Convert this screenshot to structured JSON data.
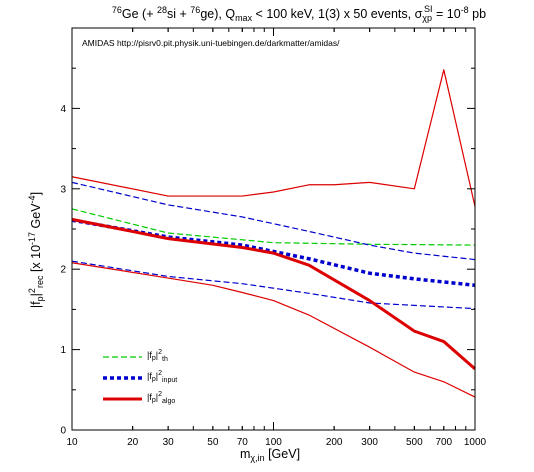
{
  "chart_data": {
    "type": "line",
    "title_parts": {
      "iso1": "76",
      "t1": "Ge (+ ",
      "iso2": "28",
      "t2": "si + ",
      "iso3": "76",
      "t3": "ge), Q",
      "qsub": "max",
      "t4": " < 100 keV, 1(3) x 50 events, σ",
      "ssub": "χp",
      "ssup": "SI",
      "t5": " = 10",
      "exp": "-8",
      "t6": " pb"
    },
    "annotation": "AMIDAS   http://pisrv0.pit.physik.uni-tuebingen.de/darkmatter/amidas/",
    "xlabel": {
      "main": "m",
      "sub": "χ,in",
      "rest": " [GeV]"
    },
    "ylabel": {
      "p1": "|f",
      "sub1": "p",
      "p2": "|",
      "sup1": "2",
      "sub2": "rec",
      "p3": "  [x 10",
      "sup2": "-17",
      "p4": " GeV",
      "sup3": "-4",
      "p5": "]"
    },
    "xscale": "log",
    "xlim": [
      10,
      1000
    ],
    "ylim": [
      0,
      5
    ],
    "xticks": [
      10,
      20,
      30,
      50,
      70,
      100,
      200,
      300,
      500,
      700,
      1000
    ],
    "xtick_labels": [
      "10",
      "20",
      "30",
      "50",
      "70",
      "100",
      "200",
      "300",
      "500",
      "700",
      "1000"
    ],
    "yticks": [
      0,
      1,
      2,
      3,
      4
    ],
    "ytick_labels": [
      "0",
      "1",
      "2",
      "3",
      "4"
    ],
    "grid": false,
    "legend_position": "bottom-left",
    "legend": [
      {
        "p1": "|f",
        "sub1": "p",
        "p2": "|",
        "sup": "2",
        "sub2": "th",
        "color": "#00cc00",
        "style": "dashed",
        "width": 1.2
      },
      {
        "p1": "|f",
        "sub1": "p",
        "p2": "|",
        "sup": "2",
        "sub2": "input",
        "color": "#0000cc",
        "style": "dotted",
        "width": 3.5
      },
      {
        "p1": "|f",
        "sub1": "p",
        "p2": "|",
        "sup": "2",
        "sub2": "algo",
        "color": "#dd0000",
        "style": "solid",
        "width": 3
      }
    ],
    "series": [
      {
        "role": "th",
        "color": "#00cc00",
        "style": "dashed",
        "width": 1.2,
        "x": [
          10,
          30,
          100,
          300,
          1000
        ],
        "y": [
          2.75,
          2.45,
          2.33,
          2.31,
          2.3
        ]
      },
      {
        "role": "input-upper",
        "color": "#0000cc",
        "style": "dashed",
        "width": 1.2,
        "x": [
          10,
          30,
          70,
          150,
          300,
          500,
          1000
        ],
        "y": [
          3.08,
          2.8,
          2.65,
          2.47,
          2.3,
          2.2,
          2.12
        ]
      },
      {
        "role": "input",
        "color": "#0000cc",
        "style": "dotted",
        "width": 3.5,
        "x": [
          10,
          30,
          70,
          150,
          300,
          500,
          1000
        ],
        "y": [
          2.61,
          2.4,
          2.3,
          2.13,
          1.95,
          1.88,
          1.8
        ]
      },
      {
        "role": "input-lower",
        "color": "#0000cc",
        "style": "dashed",
        "width": 1.2,
        "x": [
          10,
          30,
          70,
          150,
          300,
          500,
          1000
        ],
        "y": [
          2.1,
          1.91,
          1.82,
          1.7,
          1.58,
          1.55,
          1.51
        ]
      },
      {
        "role": "algo-upper",
        "color": "#dd0000",
        "style": "solid",
        "width": 1.2,
        "x": [
          10,
          30,
          50,
          70,
          100,
          150,
          200,
          300,
          500,
          700,
          1000
        ],
        "y": [
          3.15,
          2.91,
          2.91,
          2.91,
          2.96,
          3.05,
          3.05,
          3.08,
          3.0,
          4.48,
          2.78
        ]
      },
      {
        "role": "algo",
        "color": "#dd0000",
        "style": "solid",
        "width": 3,
        "x": [
          10,
          30,
          70,
          100,
          150,
          300,
          500,
          700,
          1000
        ],
        "y": [
          2.62,
          2.38,
          2.27,
          2.2,
          2.05,
          1.61,
          1.23,
          1.1,
          0.76
        ]
      },
      {
        "role": "algo-lower",
        "color": "#dd0000",
        "style": "solid",
        "width": 1.2,
        "x": [
          10,
          30,
          50,
          70,
          100,
          150,
          300,
          500,
          700,
          1000
        ],
        "y": [
          2.08,
          1.89,
          1.8,
          1.71,
          1.61,
          1.43,
          1.03,
          0.72,
          0.6,
          0.41
        ]
      }
    ]
  }
}
